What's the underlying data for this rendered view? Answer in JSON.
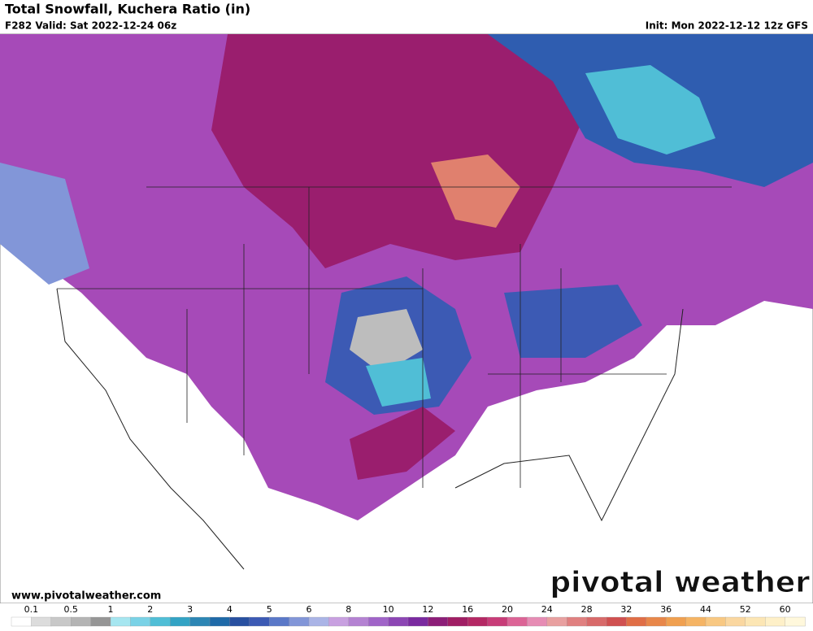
{
  "header": {
    "title": "Total Snowfall, Kuchera Ratio (in)",
    "valid": "F282 Valid: Sat 2022-12-24 06z",
    "init": "Init: Mon 2022-12-12 12z GFS"
  },
  "footer": {
    "url": "www.pivotalweather.com",
    "logo": "pivotal weather"
  },
  "colorbar": {
    "labels": [
      0.1,
      0.5,
      1,
      2,
      3,
      4,
      5,
      6,
      8,
      10,
      12,
      16,
      20,
      24,
      28,
      32,
      36,
      44,
      52,
      60
    ],
    "colors": [
      "#ffffff",
      "#dcdcdc",
      "#c8c8c8",
      "#b4b4b4",
      "#969696",
      "#a6e6f0",
      "#7ad2e6",
      "#50bed6",
      "#33a3c4",
      "#2d86b4",
      "#1f6aa8",
      "#2850a0",
      "#3c5ab4",
      "#5a78c8",
      "#8296d8",
      "#aab4e6",
      "#c8a0e0",
      "#b482d2",
      "#a064c8",
      "#8c46b4",
      "#7a2aa0",
      "#8c1e78",
      "#a01e64",
      "#b42864",
      "#c83c78",
      "#dc6496",
      "#e68cb4",
      "#e8a0a0",
      "#e08080",
      "#d86a6a",
      "#d05050",
      "#e06e46",
      "#e8874a",
      "#f0a050",
      "#f5b464",
      "#f8c882",
      "#fad7a0",
      "#fce6b4",
      "#fef0c8",
      "#fff8dc"
    ]
  }
}
